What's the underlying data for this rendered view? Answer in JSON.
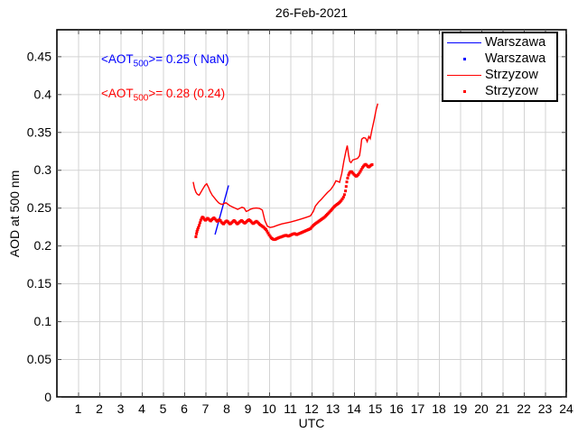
{
  "title": "26-Feb-2021",
  "axes": {
    "xlabel": "UTC",
    "ylabel": "AOD at 500 nm"
  },
  "annotations": {
    "warszawa": {
      "prefix": "<AOT",
      "sub": "500",
      "rest": ">= 0.25 ( NaN)",
      "color": "#0000ff"
    },
    "strzyzow": {
      "prefix": "<AOT",
      "sub": "500",
      "rest": ">= 0.28 (0.24)",
      "color": "#ff0000"
    }
  },
  "legend": {
    "items": [
      {
        "label": "Warszawa",
        "type": "line",
        "color": "#0000ff"
      },
      {
        "label": "Warszawa",
        "type": "dot",
        "color": "#0000ff"
      },
      {
        "label": "Strzyzow",
        "type": "line",
        "color": "#ff0000"
      },
      {
        "label": "Strzyzow",
        "type": "dot",
        "color": "#ff0000"
      }
    ]
  },
  "chart_data": {
    "type": "line",
    "title": "26-Feb-2021",
    "xlabel": "UTC",
    "ylabel": "AOD at 500 nm",
    "xlim": [
      0,
      24
    ],
    "ylim": [
      0,
      0.485
    ],
    "xticks": [
      1,
      2,
      3,
      4,
      5,
      6,
      7,
      8,
      9,
      10,
      11,
      12,
      13,
      14,
      15,
      16,
      17,
      18,
      19,
      20,
      21,
      22,
      23,
      24
    ],
    "yticks": [
      0,
      0.05,
      0.1,
      0.15,
      0.2,
      0.25,
      0.3,
      0.35,
      0.4,
      0.45
    ],
    "ytick_labels": [
      "0",
      "0.05",
      "0.1",
      "0.15",
      "0.2",
      "0.25",
      "0.3",
      "0.35",
      "0.4",
      "0.45"
    ],
    "grid": true,
    "grid_color": "#d3d3d3",
    "legend_position": "top-right",
    "stats": {
      "warszawa_mean": "0.25",
      "warszawa_secondary": "NaN",
      "strzyzow_mean": "0.28",
      "strzyzow_secondary": "0.24"
    },
    "series": [
      {
        "name": "Warszawa",
        "style": "line",
        "color": "#0000ff",
        "points": [
          [
            7.45,
            0.2145
          ],
          [
            8.09,
            0.2795
          ]
        ]
      },
      {
        "name": "Warszawa",
        "style": "scatter",
        "color": "#0000ff",
        "points": []
      },
      {
        "name": "Strzyzow",
        "style": "line",
        "color": "#ff0000",
        "points": [
          [
            6.42,
            0.284
          ],
          [
            6.48,
            0.276
          ],
          [
            6.55,
            0.2705
          ],
          [
            6.62,
            0.2675
          ],
          [
            6.7,
            0.2665
          ],
          [
            6.78,
            0.27
          ],
          [
            6.88,
            0.275
          ],
          [
            6.98,
            0.2795
          ],
          [
            7.06,
            0.2815
          ],
          [
            7.14,
            0.277
          ],
          [
            7.22,
            0.2715
          ],
          [
            7.32,
            0.2665
          ],
          [
            7.42,
            0.263
          ],
          [
            7.52,
            0.2595
          ],
          [
            7.62,
            0.2565
          ],
          [
            7.72,
            0.2548
          ],
          [
            7.8,
            0.2545
          ],
          [
            7.88,
            0.2555
          ],
          [
            7.96,
            0.2565
          ],
          [
            8.04,
            0.255
          ],
          [
            8.14,
            0.2528
          ],
          [
            8.28,
            0.2508
          ],
          [
            8.42,
            0.249
          ],
          [
            8.52,
            0.2478
          ],
          [
            8.62,
            0.2492
          ],
          [
            8.72,
            0.2505
          ],
          [
            8.82,
            0.2495
          ],
          [
            8.92,
            0.245
          ],
          [
            9.02,
            0.2462
          ],
          [
            9.12,
            0.248
          ],
          [
            9.25,
            0.2492
          ],
          [
            9.4,
            0.2495
          ],
          [
            9.55,
            0.249
          ],
          [
            9.68,
            0.2468
          ],
          [
            9.8,
            0.233
          ],
          [
            9.92,
            0.2255
          ],
          [
            10.05,
            0.2238
          ],
          [
            10.2,
            0.2248
          ],
          [
            10.4,
            0.2268
          ],
          [
            10.6,
            0.2285
          ],
          [
            10.8,
            0.2298
          ],
          [
            11.0,
            0.231
          ],
          [
            11.25,
            0.2328
          ],
          [
            11.5,
            0.235
          ],
          [
            11.75,
            0.2372
          ],
          [
            11.95,
            0.2392
          ],
          [
            12.08,
            0.245
          ],
          [
            12.18,
            0.252
          ],
          [
            12.32,
            0.257
          ],
          [
            12.46,
            0.261
          ],
          [
            12.6,
            0.2655
          ],
          [
            12.75,
            0.27
          ],
          [
            12.9,
            0.274
          ],
          [
            13.05,
            0.28
          ],
          [
            13.15,
            0.2855
          ],
          [
            13.25,
            0.2845
          ],
          [
            13.32,
            0.2835
          ],
          [
            13.42,
            0.295
          ],
          [
            13.52,
            0.311
          ],
          [
            13.62,
            0.325
          ],
          [
            13.68,
            0.332
          ],
          [
            13.74,
            0.32
          ],
          [
            13.8,
            0.311
          ],
          [
            13.86,
            0.3095
          ],
          [
            13.94,
            0.313
          ],
          [
            14.05,
            0.314
          ],
          [
            14.16,
            0.315
          ],
          [
            14.26,
            0.3185
          ],
          [
            14.32,
            0.33
          ],
          [
            14.36,
            0.3405
          ],
          [
            14.45,
            0.3425
          ],
          [
            14.55,
            0.3418
          ],
          [
            14.62,
            0.3372
          ],
          [
            14.7,
            0.344
          ],
          [
            14.76,
            0.3412
          ],
          [
            14.84,
            0.352
          ],
          [
            14.94,
            0.365
          ],
          [
            15.04,
            0.379
          ],
          [
            15.12,
            0.3875
          ]
        ]
      },
      {
        "name": "Strzyzow",
        "style": "scatter",
        "color": "#ff0000",
        "points": [
          [
            6.55,
            0.2115
          ],
          [
            6.58,
            0.2155
          ],
          [
            6.6,
            0.2185
          ],
          [
            6.63,
            0.221
          ],
          [
            6.66,
            0.2235
          ],
          [
            6.7,
            0.2265
          ],
          [
            6.74,
            0.23
          ],
          [
            6.78,
            0.2335
          ],
          [
            6.82,
            0.236
          ],
          [
            6.86,
            0.2375
          ],
          [
            6.9,
            0.2365
          ],
          [
            6.95,
            0.2345
          ],
          [
            7.0,
            0.2335
          ],
          [
            7.05,
            0.2345
          ],
          [
            7.1,
            0.236
          ],
          [
            7.15,
            0.235
          ],
          [
            7.2,
            0.2335
          ],
          [
            7.25,
            0.2325
          ],
          [
            7.3,
            0.234
          ],
          [
            7.35,
            0.2355
          ],
          [
            7.4,
            0.2365
          ],
          [
            7.45,
            0.235
          ],
          [
            7.5,
            0.2335
          ],
          [
            7.55,
            0.232
          ],
          [
            7.6,
            0.233
          ],
          [
            7.65,
            0.234
          ],
          [
            7.7,
            0.233
          ],
          [
            7.75,
            0.231
          ],
          [
            7.8,
            0.2295
          ],
          [
            7.85,
            0.2285
          ],
          [
            7.9,
            0.23
          ],
          [
            7.95,
            0.2315
          ],
          [
            8.0,
            0.2325
          ],
          [
            8.05,
            0.2315
          ],
          [
            8.1,
            0.23
          ],
          [
            8.15,
            0.2285
          ],
          [
            8.2,
            0.229
          ],
          [
            8.25,
            0.2305
          ],
          [
            8.3,
            0.232
          ],
          [
            8.35,
            0.233
          ],
          [
            8.4,
            0.2315
          ],
          [
            8.45,
            0.23
          ],
          [
            8.5,
            0.2285
          ],
          [
            8.55,
            0.2295
          ],
          [
            8.6,
            0.231
          ],
          [
            8.65,
            0.232
          ],
          [
            8.7,
            0.233
          ],
          [
            8.75,
            0.232
          ],
          [
            8.8,
            0.2305
          ],
          [
            8.85,
            0.2295
          ],
          [
            8.9,
            0.2305
          ],
          [
            8.95,
            0.232
          ],
          [
            9.0,
            0.233
          ],
          [
            9.05,
            0.234
          ],
          [
            9.1,
            0.233
          ],
          [
            9.15,
            0.2315
          ],
          [
            9.2,
            0.23
          ],
          [
            9.25,
            0.229
          ],
          [
            9.3,
            0.23
          ],
          [
            9.35,
            0.231
          ],
          [
            9.4,
            0.232
          ],
          [
            9.45,
            0.231
          ],
          [
            9.5,
            0.2295
          ],
          [
            9.55,
            0.228
          ],
          [
            9.6,
            0.227
          ],
          [
            9.65,
            0.226
          ],
          [
            9.7,
            0.225
          ],
          [
            9.75,
            0.224
          ],
          [
            9.8,
            0.2225
          ],
          [
            9.85,
            0.221
          ],
          [
            9.9,
            0.219
          ],
          [
            9.95,
            0.2165
          ],
          [
            10.0,
            0.214
          ],
          [
            10.05,
            0.212
          ],
          [
            10.1,
            0.21
          ],
          [
            10.15,
            0.209
          ],
          [
            10.2,
            0.2082
          ],
          [
            10.25,
            0.2078
          ],
          [
            10.3,
            0.2082
          ],
          [
            10.35,
            0.209
          ],
          [
            10.4,
            0.2096
          ],
          [
            10.45,
            0.2102
          ],
          [
            10.5,
            0.2108
          ],
          [
            10.55,
            0.2112
          ],
          [
            10.6,
            0.2118
          ],
          [
            10.65,
            0.2122
          ],
          [
            10.7,
            0.2128
          ],
          [
            10.75,
            0.2132
          ],
          [
            10.8,
            0.2136
          ],
          [
            10.85,
            0.213
          ],
          [
            10.9,
            0.2124
          ],
          [
            10.95,
            0.213
          ],
          [
            11.0,
            0.2136
          ],
          [
            11.05,
            0.2142
          ],
          [
            11.1,
            0.2148
          ],
          [
            11.15,
            0.2154
          ],
          [
            11.2,
            0.2158
          ],
          [
            11.25,
            0.215
          ],
          [
            11.3,
            0.2144
          ],
          [
            11.35,
            0.215
          ],
          [
            11.4,
            0.2156
          ],
          [
            11.45,
            0.2162
          ],
          [
            11.5,
            0.2168
          ],
          [
            11.55,
            0.2174
          ],
          [
            11.6,
            0.218
          ],
          [
            11.65,
            0.2186
          ],
          [
            11.7,
            0.2192
          ],
          [
            11.75,
            0.2198
          ],
          [
            11.8,
            0.2204
          ],
          [
            11.85,
            0.221
          ],
          [
            11.9,
            0.2216
          ],
          [
            11.95,
            0.2224
          ],
          [
            12.0,
            0.224
          ],
          [
            12.05,
            0.2256
          ],
          [
            12.1,
            0.227
          ],
          [
            12.15,
            0.2282
          ],
          [
            12.2,
            0.2292
          ],
          [
            12.25,
            0.2302
          ],
          [
            12.3,
            0.2312
          ],
          [
            12.35,
            0.2322
          ],
          [
            12.4,
            0.2332
          ],
          [
            12.45,
            0.2342
          ],
          [
            12.5,
            0.2352
          ],
          [
            12.55,
            0.2362
          ],
          [
            12.6,
            0.2372
          ],
          [
            12.65,
            0.2386
          ],
          [
            12.7,
            0.24
          ],
          [
            12.75,
            0.2414
          ],
          [
            12.8,
            0.2428
          ],
          [
            12.85,
            0.2444
          ],
          [
            12.9,
            0.246
          ],
          [
            12.95,
            0.2476
          ],
          [
            13.0,
            0.2492
          ],
          [
            13.05,
            0.2506
          ],
          [
            13.1,
            0.252
          ],
          [
            13.15,
            0.2532
          ],
          [
            13.2,
            0.2544
          ],
          [
            13.25,
            0.2554
          ],
          [
            13.3,
            0.2564
          ],
          [
            13.35,
            0.2578
          ],
          [
            13.4,
            0.2596
          ],
          [
            13.45,
            0.2616
          ],
          [
            13.5,
            0.264
          ],
          [
            13.55,
            0.2672
          ],
          [
            13.6,
            0.272
          ],
          [
            13.63,
            0.278
          ],
          [
            13.66,
            0.284
          ],
          [
            13.7,
            0.289
          ],
          [
            13.74,
            0.293
          ],
          [
            13.78,
            0.2955
          ],
          [
            13.82,
            0.297
          ],
          [
            13.86,
            0.2975
          ],
          [
            13.9,
            0.297
          ],
          [
            13.95,
            0.2955
          ],
          [
            14.0,
            0.294
          ],
          [
            14.05,
            0.2925
          ],
          [
            14.1,
            0.2915
          ],
          [
            14.15,
            0.2922
          ],
          [
            14.2,
            0.2938
          ],
          [
            14.25,
            0.2958
          ],
          [
            14.3,
            0.298
          ],
          [
            14.35,
            0.3005
          ],
          [
            14.4,
            0.303
          ],
          [
            14.45,
            0.305
          ],
          [
            14.5,
            0.3065
          ],
          [
            14.55,
            0.3072
          ],
          [
            14.6,
            0.306
          ],
          [
            14.65,
            0.3045
          ],
          [
            14.7,
            0.3038
          ],
          [
            14.75,
            0.3048
          ],
          [
            14.8,
            0.306
          ],
          [
            14.85,
            0.3068
          ]
        ]
      }
    ]
  }
}
